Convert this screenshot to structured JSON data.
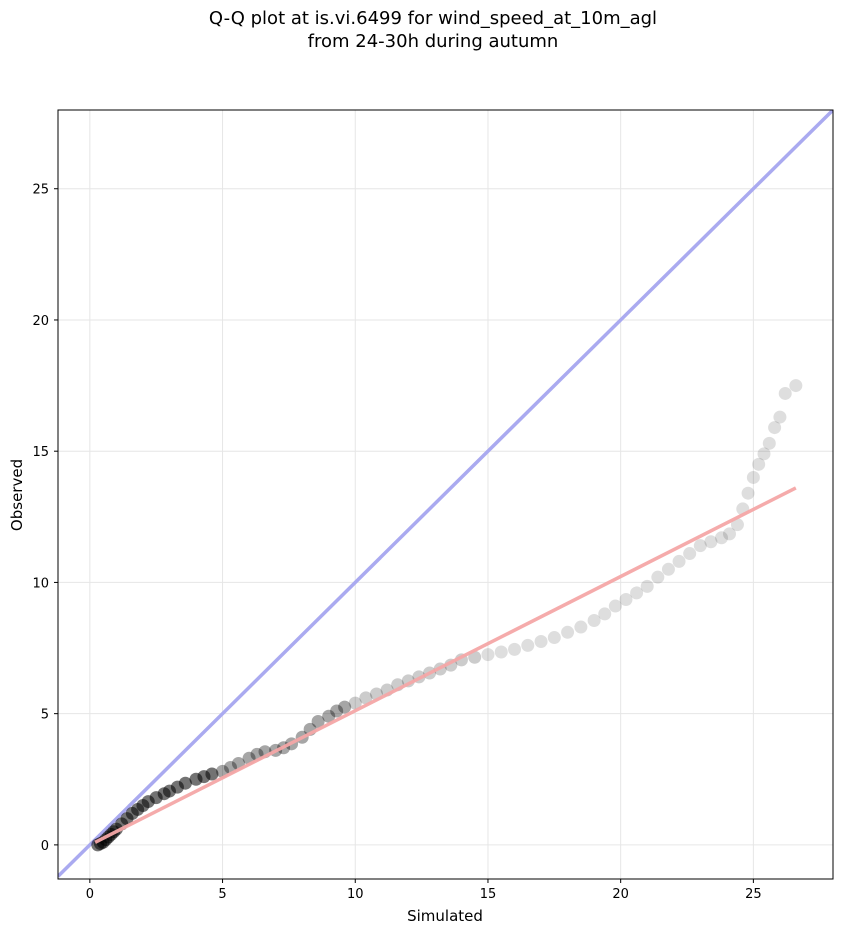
{
  "chart_data": {
    "type": "scatter",
    "title": "Q-Q plot at is.vi.6499 for wind_speed_at_10m_agl",
    "subtitle": "from 24-30h during autumn",
    "xlabel": "Simulated",
    "ylabel": "Observed",
    "xlim": [
      -1.2,
      28.0
    ],
    "ylim": [
      -1.3,
      28.0
    ],
    "xticks": [
      0,
      5,
      10,
      15,
      20,
      25
    ],
    "yticks": [
      0,
      5,
      10,
      15,
      20,
      25
    ],
    "grid": true,
    "colors": {
      "points": "#000000",
      "identity_line": "#aaaaf0",
      "fit_line": "#f4a6a6"
    },
    "identity_line": {
      "x": [
        -1.2,
        28.0
      ],
      "y": [
        -1.2,
        28.0
      ]
    },
    "fit_line": {
      "x": [
        0.2,
        26.6
      ],
      "y": [
        0.1,
        13.6
      ]
    },
    "points": {
      "x": [
        0.3,
        0.4,
        0.5,
        0.6,
        0.7,
        0.8,
        0.9,
        1.0,
        1.2,
        1.4,
        1.6,
        1.8,
        2.0,
        2.2,
        2.5,
        2.8,
        3.0,
        3.3,
        3.6,
        4.0,
        4.3,
        4.6,
        5.0,
        5.3,
        5.6,
        6.0,
        6.3,
        6.6,
        7.0,
        7.3,
        7.6,
        8.0,
        8.3,
        8.6,
        9.0,
        9.3,
        9.6,
        10.0,
        10.4,
        10.8,
        11.2,
        11.6,
        12.0,
        12.4,
        12.8,
        13.2,
        13.6,
        14.0,
        14.5,
        15.0,
        15.5,
        16.0,
        16.5,
        17.0,
        17.5,
        18.0,
        18.5,
        19.0,
        19.4,
        19.8,
        20.2,
        20.6,
        21.0,
        21.4,
        21.8,
        22.2,
        22.6,
        23.0,
        23.4,
        23.8,
        24.1,
        24.4,
        24.6,
        24.8,
        25.0,
        25.2,
        25.4,
        25.6,
        25.8,
        26.0,
        26.2,
        26.6
      ],
      "y": [
        0.0,
        0.05,
        0.1,
        0.2,
        0.3,
        0.4,
        0.5,
        0.6,
        0.8,
        1.0,
        1.2,
        1.35,
        1.5,
        1.65,
        1.8,
        1.95,
        2.05,
        2.2,
        2.35,
        2.5,
        2.6,
        2.7,
        2.8,
        2.95,
        3.1,
        3.3,
        3.45,
        3.55,
        3.6,
        3.7,
        3.85,
        4.1,
        4.4,
        4.7,
        4.9,
        5.1,
        5.25,
        5.4,
        5.6,
        5.75,
        5.9,
        6.1,
        6.25,
        6.4,
        6.55,
        6.7,
        6.85,
        7.05,
        7.15,
        7.25,
        7.35,
        7.45,
        7.6,
        7.75,
        7.9,
        8.1,
        8.3,
        8.55,
        8.8,
        9.1,
        9.35,
        9.6,
        9.85,
        10.2,
        10.5,
        10.8,
        11.1,
        11.4,
        11.55,
        11.7,
        11.85,
        12.2,
        12.8,
        13.4,
        14.0,
        14.5,
        14.9,
        15.3,
        15.9,
        16.3,
        17.2,
        17.5
      ]
    }
  }
}
